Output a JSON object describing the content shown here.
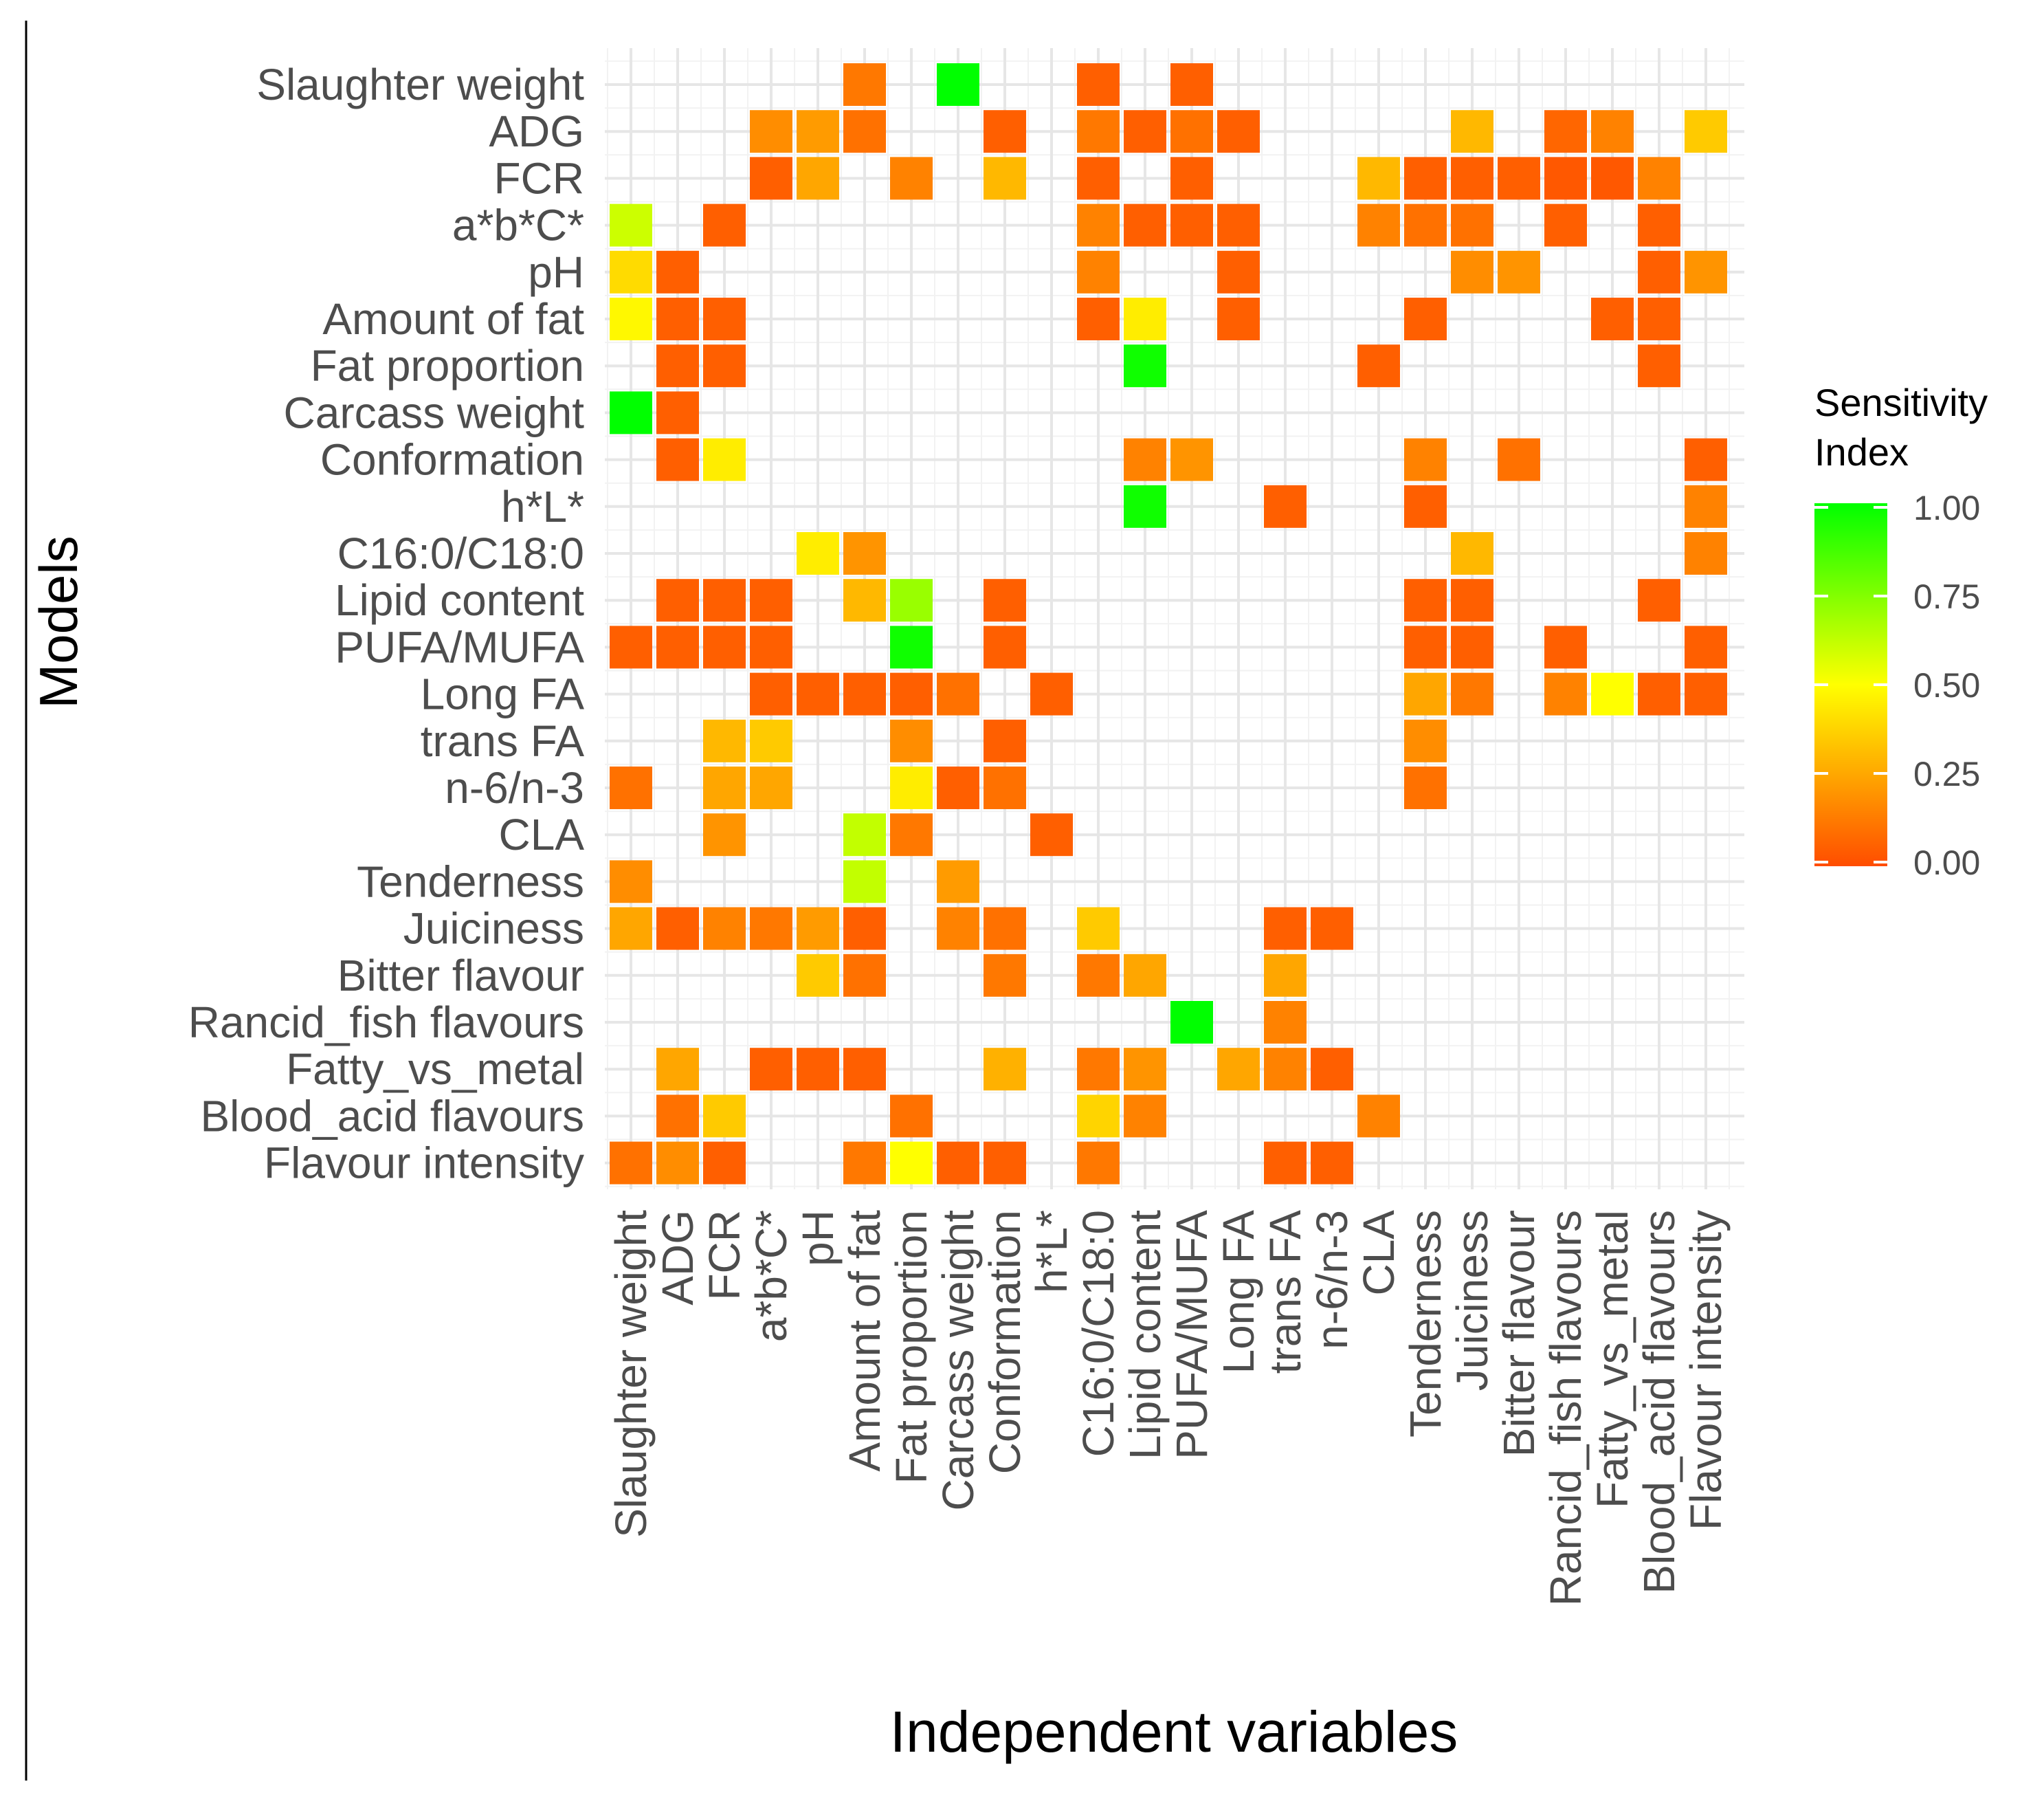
{
  "chart_data": {
    "type": "heatmap",
    "xlabel": "Independent variables",
    "ylabel": "Models",
    "legend": {
      "title_lines": [
        "Sensitivity",
        "Index"
      ],
      "breaks": [
        1.0,
        0.75,
        0.5,
        0.25,
        0.0
      ],
      "break_labels": [
        "1.00",
        "0.75",
        "0.50",
        "0.25",
        "0.00"
      ],
      "colors": [
        "#ff4d00",
        "#ffff00",
        "#00ff00"
      ],
      "position": "right"
    },
    "x_categories": [
      "Slaughter weight",
      "ADG",
      "FCR",
      "a*b*C*",
      "pH",
      "Amount of fat",
      "Fat proportion",
      "Carcass weight",
      "Conformation",
      "h*L*",
      "C16:0/C18:0",
      "Lipid content",
      "PUFA/MUFA",
      "Long FA",
      "trans FA",
      "n-6/n-3",
      "CLA",
      "Tenderness",
      "Juiciness",
      "Bitter flavour",
      "Rancid_fish flavours",
      "Fatty_vs_metal",
      "Blood_acid flavours",
      "Flavour intensity"
    ],
    "y_categories": [
      "Slaughter weight",
      "ADG",
      "FCR",
      "a*b*C*",
      "pH",
      "Amount of fat",
      "Fat proportion",
      "Carcass weight",
      "Conformation",
      "h*L*",
      "C16:0/C18:0",
      "Lipid content",
      "PUFA/MUFA",
      "Long FA",
      "trans FA",
      "n-6/n-3",
      "CLA",
      "Tenderness",
      "Juiciness",
      "Bitter flavour",
      "Rancid_fish flavours",
      "Fatty_vs_metal",
      "Blood_acid flavours",
      "Flavour intensity"
    ],
    "values": [
      [
        null,
        null,
        null,
        null,
        null,
        0.12,
        null,
        1.0,
        null,
        null,
        0.05,
        null,
        0.05,
        null,
        null,
        null,
        null,
        null,
        null,
        null,
        null,
        null,
        null,
        null
      ],
      [
        null,
        null,
        null,
        0.18,
        0.22,
        0.1,
        null,
        null,
        0.05,
        null,
        0.12,
        0.05,
        0.1,
        0.05,
        null,
        null,
        null,
        null,
        0.3,
        null,
        0.07,
        0.15,
        null,
        0.35
      ],
      [
        null,
        null,
        null,
        0.05,
        0.25,
        null,
        0.15,
        null,
        0.3,
        null,
        0.05,
        null,
        0.05,
        null,
        null,
        null,
        0.3,
        0.05,
        0.05,
        0.05,
        0.03,
        0.03,
        0.15,
        null
      ],
      [
        0.6,
        null,
        0.05,
        null,
        null,
        null,
        null,
        null,
        null,
        null,
        0.15,
        0.05,
        0.05,
        0.05,
        null,
        null,
        0.15,
        0.1,
        0.1,
        null,
        0.05,
        null,
        0.05,
        null
      ],
      [
        0.4,
        0.05,
        null,
        null,
        null,
        null,
        null,
        null,
        null,
        null,
        0.15,
        null,
        null,
        0.05,
        null,
        null,
        null,
        null,
        0.18,
        0.2,
        null,
        null,
        0.05,
        0.2
      ],
      [
        0.48,
        0.05,
        0.05,
        null,
        null,
        null,
        null,
        null,
        null,
        null,
        0.05,
        0.45,
        null,
        0.05,
        null,
        null,
        null,
        0.05,
        null,
        null,
        null,
        0.05,
        0.05,
        null
      ],
      [
        null,
        0.05,
        0.05,
        null,
        null,
        null,
        null,
        null,
        null,
        null,
        null,
        0.97,
        null,
        null,
        null,
        null,
        0.05,
        null,
        null,
        null,
        null,
        null,
        0.05,
        null
      ],
      [
        1.0,
        0.05,
        null,
        null,
        null,
        null,
        null,
        null,
        null,
        null,
        null,
        null,
        null,
        null,
        null,
        null,
        null,
        null,
        null,
        null,
        null,
        null,
        null,
        null
      ],
      [
        null,
        0.05,
        0.45,
        null,
        null,
        null,
        null,
        null,
        null,
        null,
        null,
        0.15,
        0.2,
        null,
        null,
        null,
        null,
        0.15,
        null,
        0.1,
        null,
        null,
        null,
        0.05
      ],
      [
        null,
        null,
        null,
        null,
        null,
        null,
        null,
        null,
        null,
        null,
        null,
        0.97,
        null,
        null,
        0.05,
        null,
        null,
        0.05,
        null,
        null,
        null,
        null,
        null,
        0.15
      ],
      [
        null,
        null,
        null,
        null,
        0.45,
        0.2,
        null,
        null,
        null,
        null,
        null,
        null,
        null,
        null,
        null,
        null,
        null,
        null,
        0.3,
        null,
        null,
        null,
        null,
        0.15
      ],
      [
        null,
        0.05,
        0.05,
        0.05,
        null,
        0.3,
        0.7,
        null,
        0.05,
        null,
        null,
        null,
        null,
        null,
        null,
        null,
        null,
        0.05,
        0.05,
        null,
        null,
        null,
        0.05,
        null
      ],
      [
        0.05,
        0.05,
        0.05,
        0.05,
        null,
        null,
        0.97,
        null,
        0.05,
        null,
        null,
        null,
        null,
        null,
        null,
        null,
        null,
        0.05,
        0.05,
        null,
        0.05,
        null,
        null,
        0.05
      ],
      [
        null,
        null,
        null,
        0.05,
        0.05,
        0.05,
        0.05,
        0.1,
        null,
        0.05,
        null,
        null,
        null,
        null,
        null,
        null,
        null,
        0.25,
        0.12,
        null,
        0.15,
        0.5,
        0.05,
        0.05
      ],
      [
        null,
        null,
        0.3,
        0.35,
        null,
        null,
        0.18,
        null,
        0.05,
        null,
        null,
        null,
        null,
        null,
        null,
        null,
        null,
        0.18,
        null,
        null,
        null,
        null,
        null,
        null
      ],
      [
        0.1,
        null,
        0.25,
        0.25,
        null,
        null,
        0.45,
        0.05,
        0.1,
        null,
        null,
        null,
        null,
        null,
        null,
        null,
        null,
        0.1,
        null,
        null,
        null,
        null,
        null,
        null
      ],
      [
        null,
        null,
        0.2,
        null,
        null,
        0.62,
        0.12,
        null,
        null,
        0.05,
        null,
        null,
        null,
        null,
        null,
        null,
        null,
        null,
        null,
        null,
        null,
        null,
        null,
        null
      ],
      [
        0.18,
        null,
        null,
        null,
        null,
        0.62,
        null,
        0.22,
        null,
        null,
        null,
        null,
        null,
        null,
        null,
        null,
        null,
        null,
        null,
        null,
        null,
        null,
        null,
        null
      ],
      [
        0.25,
        0.05,
        0.15,
        0.12,
        0.22,
        0.05,
        null,
        0.15,
        0.1,
        null,
        0.35,
        null,
        null,
        null,
        0.05,
        0.05,
        null,
        null,
        null,
        null,
        null,
        null,
        null,
        null
      ],
      [
        null,
        null,
        null,
        null,
        0.35,
        0.1,
        null,
        null,
        0.12,
        null,
        0.12,
        0.25,
        null,
        null,
        0.25,
        null,
        null,
        null,
        null,
        null,
        null,
        null,
        null,
        null
      ],
      [
        null,
        null,
        null,
        null,
        null,
        null,
        null,
        null,
        null,
        null,
        null,
        null,
        1.0,
        null,
        0.15,
        null,
        null,
        null,
        null,
        null,
        null,
        null,
        null,
        null
      ],
      [
        null,
        0.25,
        null,
        0.05,
        0.05,
        0.05,
        null,
        null,
        0.28,
        null,
        0.12,
        0.2,
        null,
        0.25,
        0.15,
        0.05,
        null,
        null,
        null,
        null,
        null,
        null,
        null,
        null
      ],
      [
        null,
        0.1,
        0.35,
        null,
        null,
        null,
        0.1,
        null,
        null,
        null,
        0.38,
        0.15,
        null,
        null,
        null,
        null,
        0.15,
        null,
        null,
        null,
        null,
        null,
        null,
        null
      ],
      [
        0.1,
        0.18,
        0.05,
        null,
        null,
        0.12,
        0.5,
        0.05,
        0.05,
        null,
        0.12,
        null,
        null,
        null,
        0.05,
        0.05,
        null,
        null,
        null,
        null,
        null,
        null,
        null,
        null
      ]
    ]
  }
}
